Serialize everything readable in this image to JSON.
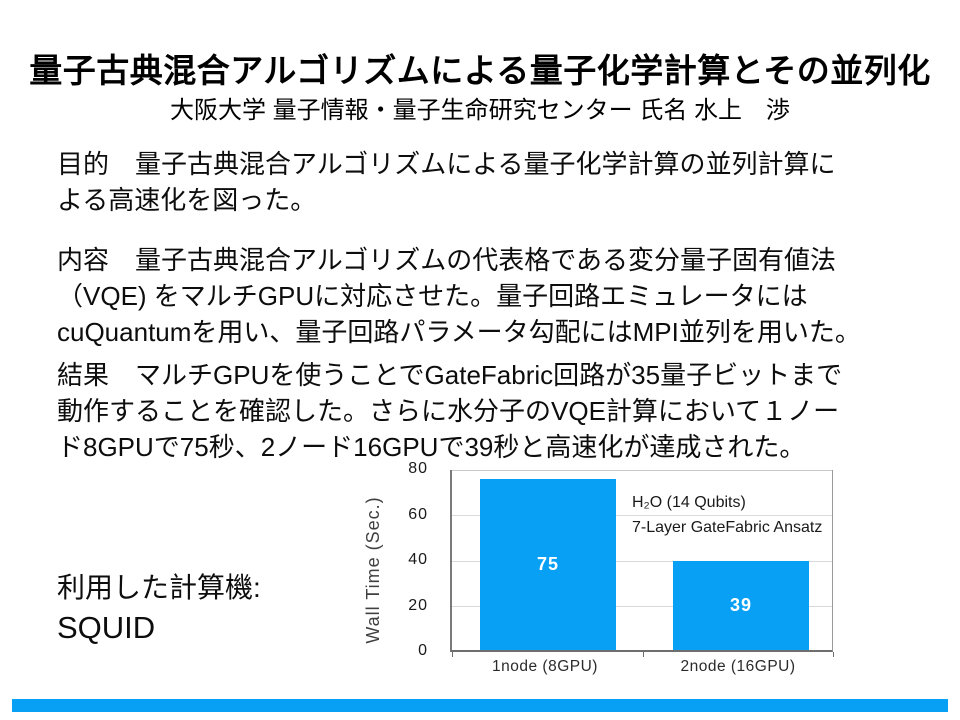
{
  "slide": {
    "title": "量子古典混合アルゴリズムによる量子化学計算とその並列化",
    "subtitle": "大阪大学 量子情報・量子生命研究センター 氏名 水上　渉",
    "paragraphs": [
      {
        "name": "purpose",
        "lines": [
          "目的　量子古典混合アルゴリズムによる量子化学計算の並列計算に",
          "よる高速化を図った。"
        ]
      },
      {
        "name": "content",
        "lines": [
          "内容　量子古典混合アルゴリズムの代表格である変分量子固有値法",
          "（VQE) をマルチGPUに対応させた。量子回路エミュレータには",
          "cuQuantumを用い、量子回路パラメータ勾配にはMPI並列を用いた。"
        ]
      },
      {
        "name": "result",
        "lines": [
          "結果　マルチGPUを使うことでGateFabric回路が35量子ビットまで",
          "動作することを確認した。さらに水分子のVQE計算において１ノー",
          "ド8GPUで75秒、2ノード16GPUで39秒と高速化が達成された。"
        ]
      }
    ],
    "machine_label": "利用した計算機:",
    "machine_name": "SQUID",
    "accent_color": "#07a0f5"
  },
  "chart_data": {
    "type": "bar",
    "categories": [
      "1node (8GPU)",
      "2node (16GPU)"
    ],
    "values": [
      75,
      39
    ],
    "title": "",
    "xlabel": "",
    "ylabel": "Wall Time (Sec.)",
    "ylim": [
      0,
      80
    ],
    "yticks": [
      0,
      20,
      40,
      60,
      80
    ],
    "grid": true,
    "legend_position": "none",
    "bar_color": "#07a0f5",
    "value_label_color": "#ffffff",
    "annotations": [
      "H₂O (14 Qubits)",
      "7-Layer GateFabric Ansatz"
    ]
  }
}
